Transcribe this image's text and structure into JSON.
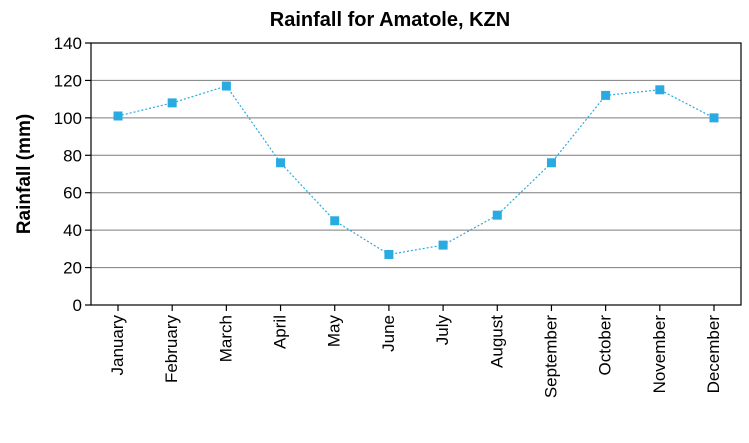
{
  "chart_data": {
    "type": "line",
    "title": "Rainfall for Amatole, KZN",
    "xlabel": "",
    "ylabel": "Rainfall (mm)",
    "categories": [
      "January",
      "February",
      "March",
      "April",
      "May",
      "June",
      "July",
      "August",
      "September",
      "October",
      "November",
      "December"
    ],
    "series": [
      {
        "values": [
          101,
          108,
          117,
          76,
          45,
          27,
          32,
          48,
          76,
          112,
          115,
          100
        ],
        "color": "#29abe2"
      }
    ],
    "ylim": [
      0,
      140
    ],
    "yticks": [
      0,
      20,
      40,
      60,
      80,
      100,
      120,
      140
    ],
    "grid": "horizontal",
    "legend": "none",
    "marker": "square"
  }
}
